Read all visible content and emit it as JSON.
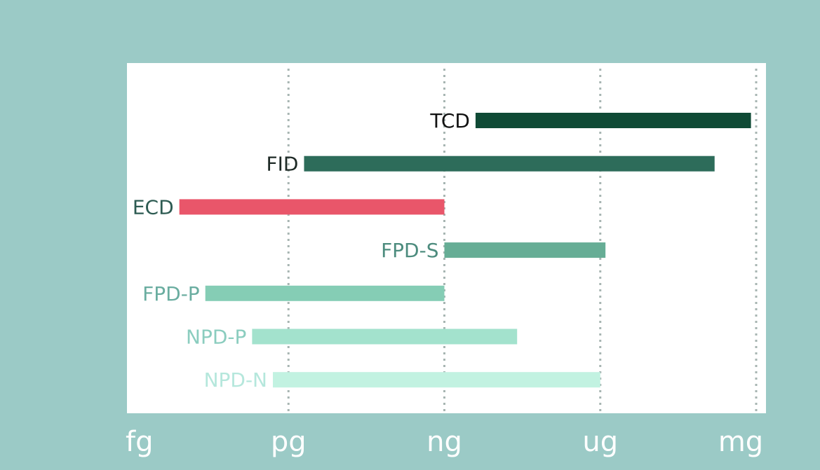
{
  "background_color": "#9bcac6",
  "plot_background": "#ffffff",
  "chart_data": {
    "type": "bar",
    "orientation": "horizontal",
    "x_scale": "log10",
    "x_axis": {
      "ticks": [
        "fg",
        "pg",
        "ng",
        "ug",
        "mg"
      ],
      "tick_exponents": [
        -15,
        -12,
        -9,
        -6,
        -3
      ],
      "range": [
        -15,
        -3
      ]
    },
    "grid": "vertical dotted at pg, ng, ug, mg",
    "legend": "none",
    "series": [
      {
        "label": "TCD",
        "range": [
          -8.4,
          -3.1
        ],
        "color": "#0f4a35",
        "label_color": "#111111"
      },
      {
        "label": "FID",
        "range": [
          -11.7,
          -3.8
        ],
        "color": "#2d6c5a",
        "label_color": "#1e2a26"
      },
      {
        "label": "ECD",
        "range": [
          -14.1,
          -9.0
        ],
        "color": "#e9566a",
        "label_color": "#2d5b52"
      },
      {
        "label": "FPD-S",
        "range": [
          -9.0,
          -5.9
        ],
        "color": "#66ad95",
        "label_color": "#4d8c7e"
      },
      {
        "label": "FPD-P",
        "range": [
          -13.6,
          -9.0
        ],
        "color": "#85cdb5",
        "label_color": "#6aada0"
      },
      {
        "label": "NPD-P",
        "range": [
          -12.7,
          -7.6
        ],
        "color": "#a3e2cd",
        "label_color": "#8bcdbf"
      },
      {
        "label": "NPD-N",
        "range": [
          -12.3,
          -6.0
        ],
        "color": "#c2f2e1",
        "label_color": "#b5e7dc"
      }
    ]
  }
}
